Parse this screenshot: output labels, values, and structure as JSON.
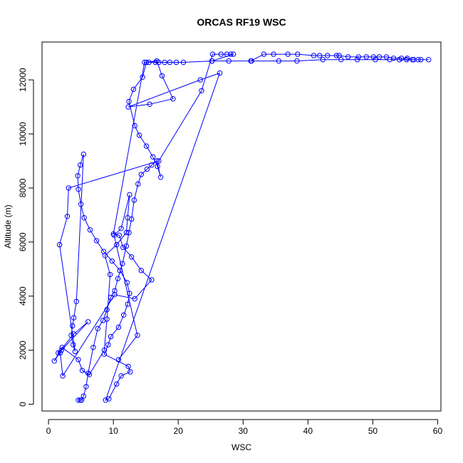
{
  "chart_data": {
    "type": "line",
    "title": "ORCAS RF19 WSC",
    "xlabel": "WSC",
    "ylabel": "Altitude (m)",
    "xlim": [
      -1,
      60.5
    ],
    "ylim": [
      -250,
      13400
    ],
    "xticks": [
      0,
      10,
      20,
      30,
      40,
      50,
      60
    ],
    "yticks": [
      0,
      2000,
      4000,
      6000,
      8000,
      10000,
      12000
    ],
    "grid": false,
    "legend": "none",
    "series": [
      {
        "color": "#0000ff",
        "marker": "open-circle",
        "x": [
          4.6,
          4.9,
          5.1,
          5.4,
          5.8,
          6.1,
          6.9,
          7.6,
          8.4,
          9.0,
          9.6,
          10.2,
          10.7,
          11.4,
          12.0,
          12.4,
          12.8,
          13.2,
          13.8,
          14.3,
          15.2,
          15.9,
          16.7,
          17.3,
          16.8,
          16.1,
          15.1,
          14.0,
          13.3,
          12.4,
          13.1,
          14.5,
          15.1,
          16.7,
          17.5,
          19.2,
          15.6,
          12.3,
          23.4,
          26.4,
          8.8,
          9.3,
          10.5,
          11.2,
          12.6,
          12.3,
          8.6,
          9.2,
          9.6,
          10.8,
          11.6,
          12.2,
          12.5,
          12.1,
          11.0,
          9.8,
          8.5,
          7.4,
          6.4,
          5.5,
          5.0,
          4.6,
          4.5,
          4.9,
          5.4,
          4.3,
          3.9,
          3.7,
          3.5,
          3.8,
          4.1,
          1.7,
          2.9,
          3.1,
          17.0,
          23.6,
          25.3,
          26.6,
          27.5,
          28.1,
          28.5,
          25.2,
          31.2,
          33.2,
          34.7,
          36.9,
          38.4,
          40.9,
          41.8,
          43.0,
          44.4,
          44.8,
          46.2,
          47.8,
          49.0,
          50.1,
          51.0,
          52.1,
          53.2,
          54.4,
          55.3,
          56.1,
          57.0,
          57.4,
          58.6,
          56.3,
          55.2,
          54.1,
          52.6,
          50.4,
          47.6,
          45.1,
          42.3,
          38.3,
          35.5,
          31.3,
          27.8,
          25.2,
          20.8,
          19.7,
          18.7,
          17.9,
          17.0,
          16.5,
          15.5,
          14.8,
          10.0,
          10.9,
          11.5,
          12.8,
          14.3,
          15.9,
          13.3,
          10.2,
          2.2,
          1.8,
          1.5,
          3.9,
          6.1,
          2.0,
          0.9,
          2.1,
          4.6,
          5.2,
          6.3,
          8.6,
          9.0,
          9.5,
          8.7,
          10.5,
          12.0,
          12.2,
          12.5,
          11.2,
          10.1,
          13.7,
          10.8
        ],
        "y": [
          150,
          150,
          150,
          300,
          650,
          1150,
          2100,
          2800,
          3100,
          3500,
          3950,
          4200,
          4650,
          5200,
          5850,
          6350,
          6850,
          7550,
          8150,
          8500,
          8700,
          8850,
          9000,
          8400,
          8800,
          9150,
          9550,
          9950,
          10300,
          11200,
          11650,
          12100,
          12650,
          12700,
          12150,
          11300,
          11100,
          11000,
          12000,
          12250,
          150,
          200,
          750,
          1050,
          1200,
          1400,
          1850,
          2200,
          2500,
          2850,
          3300,
          3700,
          4100,
          4500,
          4950,
          5300,
          5650,
          6050,
          6450,
          6900,
          7400,
          7950,
          8450,
          8850,
          9250,
          3800,
          3200,
          2900,
          2550,
          2200,
          1950,
          5900,
          6950,
          8000,
          9000,
          11600,
          12950,
          12950,
          12950,
          12950,
          12950,
          12700,
          12700,
          12950,
          12950,
          12950,
          12950,
          12900,
          12900,
          12900,
          12900,
          12900,
          12850,
          12850,
          12850,
          12850,
          12850,
          12850,
          12800,
          12800,
          12800,
          12750,
          12750,
          12750,
          12750,
          12750,
          12750,
          12750,
          12750,
          12750,
          12750,
          12750,
          12750,
          12700,
          12700,
          12700,
          12700,
          12700,
          12650,
          12650,
          12650,
          12650,
          12650,
          12650,
          12650,
          12650,
          6300,
          6250,
          5800,
          5450,
          4950,
          4600,
          3900,
          4050,
          1050,
          1900,
          1900,
          2600,
          3050,
          2000,
          1600,
          2100,
          1650,
          1250,
          1100,
          2000,
          3150,
          4800,
          5500,
          5900,
          6350,
          6900,
          7750,
          6500,
          6250,
          2550,
          1650
        ]
      }
    ]
  }
}
